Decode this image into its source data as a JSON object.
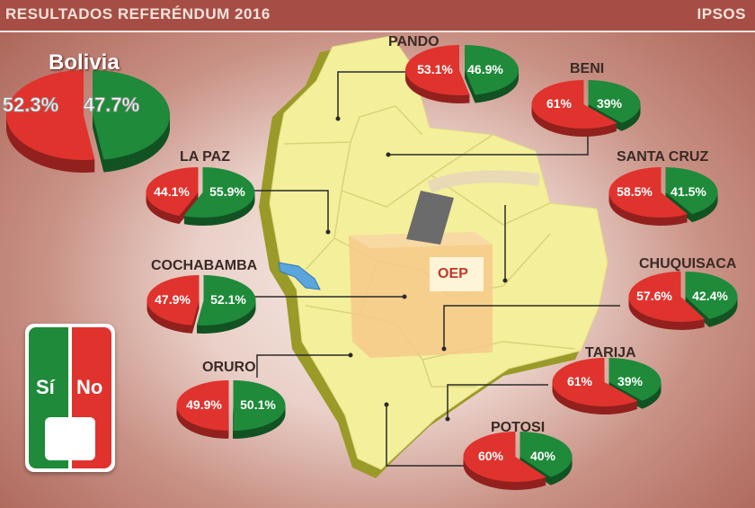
{
  "header": {
    "title": "RESULTADOS REFERÉNDUM 2016",
    "brand": "IPSOS"
  },
  "colors": {
    "si": "#1e8a3a",
    "no": "#e0332e",
    "map": "#f3ef9b",
    "map_side": "#9a9a28",
    "header_bg": "#a64e45"
  },
  "national": {
    "name": "Bolivia",
    "no_pct": "52.3%",
    "si_pct": "47.7%",
    "no": 52.3,
    "si": 47.7
  },
  "departments": [
    {
      "name": "PANDO",
      "no_pct": "53.1%",
      "si_pct": "46.9%",
      "no": 53.1,
      "si": 46.9
    },
    {
      "name": "BENI",
      "no_pct": "61%",
      "si_pct": "39%",
      "no": 61,
      "si": 39
    },
    {
      "name": "LA PAZ",
      "no_pct": "44.1%",
      "si_pct": "55.9%",
      "no": 44.1,
      "si": 55.9
    },
    {
      "name": "SANTA CRUZ",
      "no_pct": "58.5%",
      "si_pct": "41.5%",
      "no": 58.5,
      "si": 41.5
    },
    {
      "name": "COCHABAMBA",
      "no_pct": "47.9%",
      "si_pct": "52.1%",
      "no": 47.9,
      "si": 52.1
    },
    {
      "name": "CHUQUISACA",
      "no_pct": "57.6%",
      "si_pct": "42.4%",
      "no": 57.6,
      "si": 42.4
    },
    {
      "name": "ORURO",
      "no_pct": "49.9%",
      "si_pct": "50.1%",
      "no": 49.9,
      "si": 50.1
    },
    {
      "name": "TARIJA",
      "no_pct": "61%",
      "si_pct": "39%",
      "no": 61,
      "si": 39
    },
    {
      "name": "POTOSI",
      "no_pct": "60%",
      "si_pct": "40%",
      "no": 60,
      "si": 40
    }
  ],
  "legend": {
    "si_label": "Sí",
    "no_label": "No"
  },
  "ballot_logo": "OEP"
}
